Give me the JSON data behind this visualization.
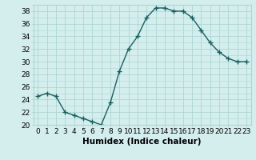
{
  "x": [
    0,
    1,
    2,
    3,
    4,
    5,
    6,
    7,
    8,
    9,
    10,
    11,
    12,
    13,
    14,
    15,
    16,
    17,
    18,
    19,
    20,
    21,
    22,
    23
  ],
  "y": [
    24.5,
    25.0,
    24.5,
    22.0,
    21.5,
    21.0,
    20.5,
    20.0,
    23.5,
    28.5,
    32.0,
    34.0,
    37.0,
    38.5,
    38.5,
    38.0,
    38.0,
    37.0,
    35.0,
    33.0,
    31.5,
    30.5,
    30.0,
    30.0
  ],
  "line_color": "#1a5f5f",
  "marker": "+",
  "marker_size": 4,
  "marker_lw": 1.0,
  "line_width": 1.0,
  "bg_color": "#d4eeee",
  "grid_color": "#aed4d4",
  "xlabel": "Humidex (Indice chaleur)",
  "ylim": [
    20,
    39
  ],
  "xlim": [
    -0.5,
    23.5
  ],
  "yticks": [
    20,
    22,
    24,
    26,
    28,
    30,
    32,
    34,
    36,
    38
  ],
  "xticks": [
    0,
    1,
    2,
    3,
    4,
    5,
    6,
    7,
    8,
    9,
    10,
    11,
    12,
    13,
    14,
    15,
    16,
    17,
    18,
    19,
    20,
    21,
    22,
    23
  ],
  "xtick_labels": [
    "0",
    "1",
    "2",
    "3",
    "4",
    "5",
    "6",
    "7",
    "8",
    "9",
    "10",
    "11",
    "12",
    "13",
    "14",
    "15",
    "16",
    "17",
    "18",
    "19",
    "20",
    "21",
    "22",
    "23"
  ],
  "tick_fontsize": 6.5,
  "label_fontsize": 7.5
}
